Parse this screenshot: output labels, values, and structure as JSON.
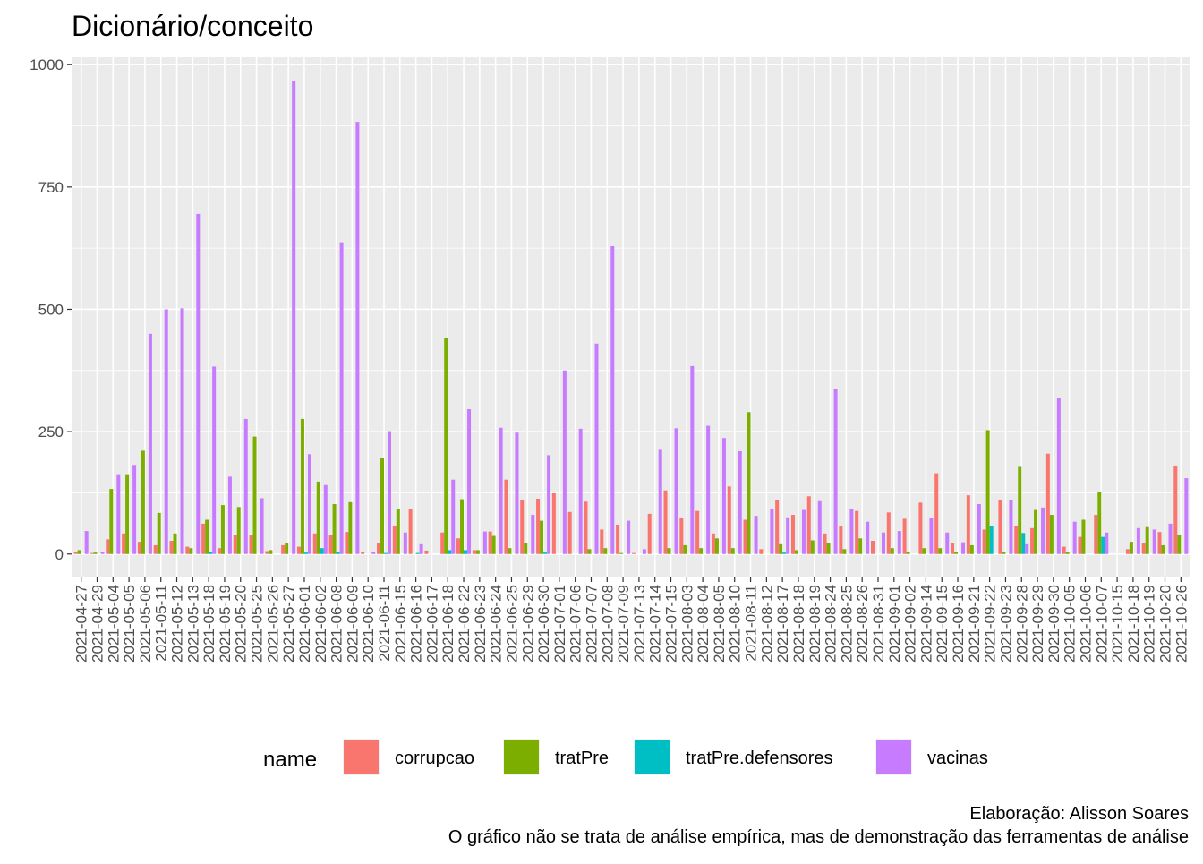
{
  "chart_data": {
    "type": "bar",
    "title": "Dicionário/conceito",
    "caption": [
      "Elaboração: Alisson Soares",
      "O gráfico não se trata de análise empírica, mas de demonstração das ferramentas de análise"
    ],
    "legend_title": "name",
    "legend_position": "bottom",
    "grid": true,
    "categories": [
      "2021-04-27",
      "2021-04-29",
      "2021-05-04",
      "2021-05-05",
      "2021-05-06",
      "2021-05-11",
      "2021-05-12",
      "2021-05-13",
      "2021-05-18",
      "2021-05-19",
      "2021-05-20",
      "2021-05-25",
      "2021-05-26",
      "2021-05-27",
      "2021-06-01",
      "2021-06-02",
      "2021-06-08",
      "2021-06-09",
      "2021-06-10",
      "2021-06-11",
      "2021-06-15",
      "2021-06-16",
      "2021-06-17",
      "2021-06-18",
      "2021-06-22",
      "2021-06-23",
      "2021-06-24",
      "2021-06-25",
      "2021-06-29",
      "2021-06-30",
      "2021-07-01",
      "2021-07-06",
      "2021-07-07",
      "2021-07-08",
      "2021-07-09",
      "2021-07-13",
      "2021-07-14",
      "2021-07-15",
      "2021-08-03",
      "2021-08-04",
      "2021-08-05",
      "2021-08-10",
      "2021-08-11",
      "2021-08-12",
      "2021-08-17",
      "2021-08-18",
      "2021-08-19",
      "2021-08-24",
      "2021-08-25",
      "2021-08-26",
      "2021-08-31",
      "2021-09-01",
      "2021-09-02",
      "2021-09-14",
      "2021-09-15",
      "2021-09-16",
      "2021-09-21",
      "2021-09-22",
      "2021-09-23",
      "2021-09-28",
      "2021-09-29",
      "2021-09-30",
      "2021-10-05",
      "2021-10-06",
      "2021-10-07",
      "2021-10-15",
      "2021-10-18",
      "2021-10-19",
      "2021-10-20",
      "2021-10-26"
    ],
    "series": [
      {
        "name": "corrupcao",
        "color": "#F8766D",
        "values": [
          5,
          2,
          30,
          42,
          25,
          18,
          27,
          15,
          62,
          12,
          38,
          38,
          6,
          18,
          15,
          42,
          38,
          45,
          4,
          22,
          57,
          92,
          7,
          44,
          32,
          8,
          46,
          152,
          110,
          113,
          124,
          86,
          107,
          50,
          60,
          2,
          82,
          130,
          73,
          88,
          42,
          138,
          70,
          10,
          110,
          80,
          118,
          42,
          58,
          88,
          27,
          85,
          72,
          105,
          165,
          22,
          120,
          50,
          110,
          57,
          53,
          205,
          15,
          35,
          80,
          0,
          10,
          22,
          45,
          180
        ]
      },
      {
        "name": "tratPre",
        "color": "#7CAE00",
        "values": [
          8,
          3,
          133,
          163,
          211,
          84,
          42,
          12,
          70,
          100,
          96,
          240,
          8,
          22,
          276,
          148,
          102,
          106,
          0,
          196,
          92,
          0,
          0,
          441,
          112,
          8,
          37,
          12,
          22,
          68,
          0,
          0,
          10,
          12,
          2,
          0,
          0,
          12,
          18,
          12,
          32,
          12,
          290,
          0,
          20,
          8,
          28,
          22,
          10,
          32,
          0,
          12,
          5,
          12,
          12,
          5,
          18,
          253,
          5,
          178,
          90,
          80,
          5,
          70,
          126,
          0,
          25,
          55,
          18,
          38
        ]
      },
      {
        "name": "tratPre.defensores",
        "color": "#00BFC4",
        "values": [
          0,
          0,
          0,
          0,
          0,
          0,
          0,
          0,
          5,
          0,
          0,
          0,
          0,
          0,
          3,
          12,
          5,
          0,
          0,
          2,
          0,
          2,
          0,
          8,
          8,
          0,
          0,
          0,
          0,
          3,
          0,
          0,
          0,
          0,
          0,
          0,
          0,
          0,
          0,
          0,
          0,
          0,
          0,
          0,
          3,
          0,
          0,
          0,
          0,
          0,
          0,
          0,
          0,
          0,
          0,
          0,
          0,
          57,
          0,
          43,
          0,
          0,
          0,
          0,
          35,
          0,
          0,
          0,
          0,
          0
        ]
      },
      {
        "name": "vacinas",
        "color": "#C77CFF",
        "values": [
          47,
          5,
          163,
          182,
          450,
          500,
          502,
          695,
          383,
          158,
          276,
          114,
          0,
          967,
          204,
          141,
          637,
          883,
          5,
          251,
          44,
          20,
          0,
          152,
          296,
          46,
          258,
          248,
          80,
          202,
          375,
          256,
          430,
          629,
          68,
          10,
          213,
          257,
          384,
          262,
          237,
          210,
          78,
          92,
          75,
          90,
          108,
          337,
          92,
          66,
          44,
          47,
          0,
          73,
          44,
          24,
          102,
          0,
          110,
          20,
          95,
          318,
          66,
          0,
          44,
          0,
          53,
          50,
          62,
          155
        ]
      }
    ],
    "ylim": [
      -48,
      1015
    ],
    "yticks": [
      0,
      250,
      500,
      750,
      1000
    ]
  }
}
